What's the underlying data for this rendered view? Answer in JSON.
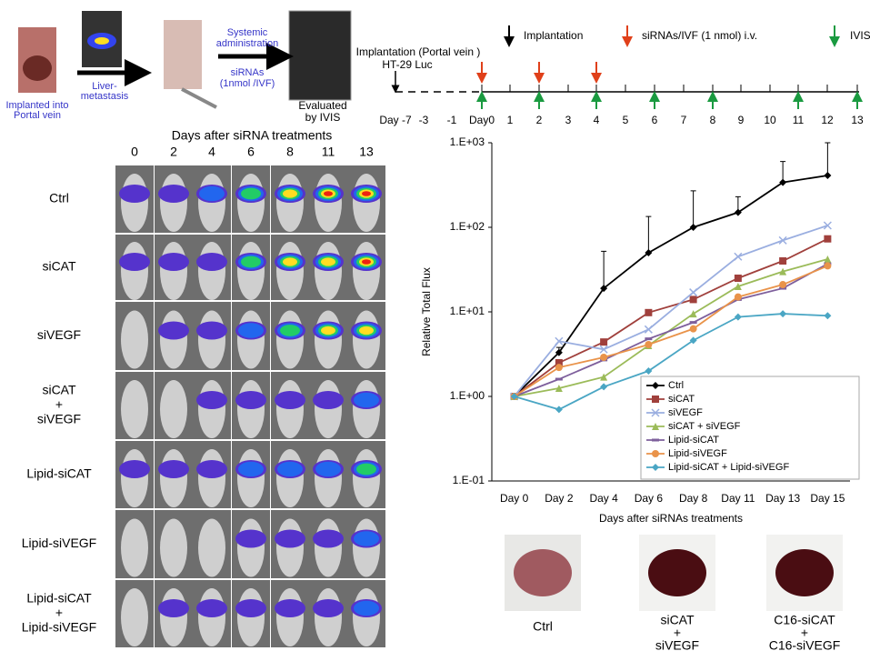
{
  "schematic": {
    "implant": [
      "Implanted into",
      "Portal vein"
    ],
    "metastasis": [
      "Liver-",
      "metastasis"
    ],
    "administration": [
      "Systemic",
      "administration"
    ],
    "sirnas": [
      "siRNAs",
      "(1nmol /IVF)"
    ],
    "evaluated": [
      "Evaluated",
      "by IVIS"
    ]
  },
  "timeline": {
    "legend": [
      "Implantation",
      "siRNAs/IVF (1 nmol) i.v.",
      "IVIS"
    ],
    "implant_note": [
      "Implantation (Portal vein )",
      "HT-29 Luc"
    ],
    "days": [
      "Day -7",
      "-3",
      "-1",
      "Day0",
      "1",
      "2",
      "3",
      "4",
      "5",
      "6",
      "7",
      "8",
      "9",
      "10",
      "11",
      "12",
      "13"
    ]
  },
  "imaging": {
    "title": "Days after siRNA treatments",
    "days": [
      "0",
      "2",
      "4",
      "6",
      "8",
      "11",
      "13"
    ],
    "rows": [
      [
        "Ctrl"
      ],
      [
        "siCAT"
      ],
      [
        "siVEGF"
      ],
      [
        "siCAT",
        "+",
        "siVEGF"
      ],
      [
        "Lipid-siCAT"
      ],
      [
        "Lipid-siVEGF"
      ],
      [
        "Lipid-siCAT",
        "+",
        "Lipid-siVEGF"
      ]
    ]
  },
  "chart_data": {
    "type": "line",
    "y_label": "Relative Total Flux",
    "x_label": "Days after siRNAs treatments",
    "log_y": true,
    "categories": [
      "Day 0",
      "Day 2",
      "Day 4",
      "Day 6",
      "Day 8",
      "Day 11",
      "Day 13",
      "Day 15"
    ],
    "ylim": [
      0.1,
      1000
    ],
    "yticks": [
      {
        "value": 0.1,
        "label": "1.E-01"
      },
      {
        "value": 1,
        "label": "1.E+00"
      },
      {
        "value": 10,
        "label": "1.E+01"
      },
      {
        "value": 100,
        "label": "1.E+02"
      },
      {
        "value": 1000,
        "label": "1.E+03"
      }
    ],
    "series": [
      {
        "name": "Ctrl",
        "color": "#000000",
        "marker": "diamond",
        "values": [
          1,
          3.3,
          19,
          50,
          100,
          150,
          340,
          410
        ],
        "errors": [
          0,
          0.5,
          33,
          84,
          170,
          80,
          260,
          590
        ]
      },
      {
        "name": "siCAT",
        "color": "#a0403c",
        "marker": "square",
        "values": [
          1,
          2.5,
          4.4,
          9.8,
          14,
          25,
          40,
          73
        ]
      },
      {
        "name": "siVEGF",
        "color": "#9aaee0",
        "marker": "cross",
        "values": [
          1,
          4.5,
          3.6,
          6.2,
          17,
          45,
          70,
          105
        ]
      },
      {
        "name": "siCAT + siVEGF",
        "color": "#9bbb59",
        "marker": "triangle",
        "values": [
          1,
          1.25,
          1.7,
          4,
          9.5,
          20,
          30,
          42
        ]
      },
      {
        "name": "Lipid-siCAT",
        "color": "#7e5f9c",
        "marker": "dash",
        "values": [
          1,
          1.6,
          2.7,
          4.8,
          7.5,
          14,
          19,
          37
        ]
      },
      {
        "name": "Lipid-siVEGF",
        "color": "#e9934a",
        "marker": "circle",
        "values": [
          1,
          2.2,
          2.9,
          4.1,
          6.3,
          15,
          21,
          35
        ]
      },
      {
        "name": "Lipid-siCAT + Lipid-siVEGF",
        "color": "#4aa6c4",
        "marker": "diamond",
        "values": [
          1,
          0.7,
          1.3,
          2,
          4.6,
          8.7,
          9.5,
          9
        ]
      }
    ]
  },
  "liver_photos": [
    [
      "Ctrl"
    ],
    [
      "siCAT",
      "+",
      "siVEGF"
    ],
    [
      "C16-siCAT",
      "+",
      "C16-siVEGF"
    ]
  ]
}
